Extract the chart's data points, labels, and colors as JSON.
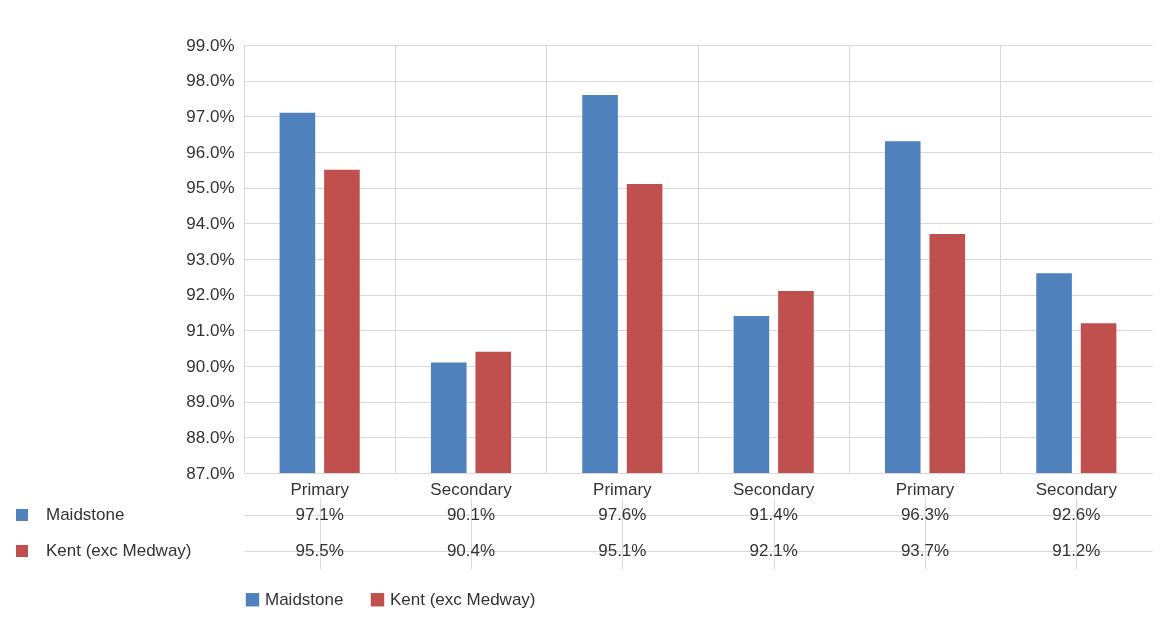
{
  "chart_data": {
    "type": "bar",
    "categories": [
      "Primary",
      "Secondary",
      "Primary",
      "Secondary",
      "Primary",
      "Secondary"
    ],
    "series": [
      {
        "name": "Maidstone",
        "color": "#4f81bd",
        "values": [
          97.1,
          90.1,
          97.6,
          91.4,
          96.3,
          92.6
        ],
        "value_labels": [
          "97.1%",
          "90.1%",
          "97.6%",
          "91.4%",
          "96.3%",
          "92.6%"
        ]
      },
      {
        "name": "Kent (exc Medway)",
        "color": "#c0504d",
        "values": [
          95.5,
          90.4,
          95.1,
          92.1,
          93.7,
          91.2
        ],
        "value_labels": [
          "95.5%",
          "90.4%",
          "95.1%",
          "92.1%",
          "93.7%",
          "91.2%"
        ]
      }
    ],
    "ylim": [
      87,
      99
    ],
    "yticks": [
      {
        "value": 87,
        "label": "87.0%"
      },
      {
        "value": 88,
        "label": "88.0%"
      },
      {
        "value": 89,
        "label": "89.0%"
      },
      {
        "value": 90,
        "label": "90.0%"
      },
      {
        "value": 91,
        "label": "91.0%"
      },
      {
        "value": 92,
        "label": "92.0%"
      },
      {
        "value": 93,
        "label": "93.0%"
      },
      {
        "value": 94,
        "label": "94.0%"
      },
      {
        "value": 95,
        "label": "95.0%"
      },
      {
        "value": 96,
        "label": "96.0%"
      },
      {
        "value": 97,
        "label": "97.0%"
      },
      {
        "value": 98,
        "label": "98.0%"
      },
      {
        "value": 99,
        "label": "99.0%"
      }
    ],
    "grid": "y",
    "legend": "bottom"
  }
}
